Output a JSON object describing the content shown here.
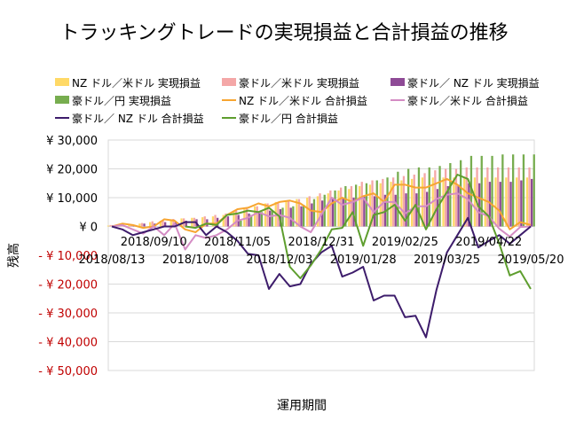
{
  "chart_data": {
    "type": "bar+line",
    "title": "トラッキングトレードの実現損益と合計損益の推移",
    "xlabel": "運用期間",
    "ylabel": "残高",
    "ylim": [
      -50000,
      30000
    ],
    "yticks": [
      30000,
      20000,
      10000,
      0,
      -10000,
      -20000,
      -30000,
      -40000,
      -50000
    ],
    "ytick_labels": [
      "¥ 30,000",
      "¥ 20,000",
      "¥ 10,000",
      "¥ 0",
      "- ¥ 10,000",
      "- ¥ 20,000",
      "- ¥ 30,000",
      "- ¥ 40,000",
      "- ¥ 50,000"
    ],
    "negative_tick_color": "#C00000",
    "grid": true,
    "legend_position": "top",
    "x_start": "2018/08/13",
    "x_interval": "weekly",
    "xtick_labels": [
      "2018/08/13",
      "2018/09/10",
      "2018/10/08",
      "2018/11/05",
      "2018/12/03",
      "2018/12/31",
      "2019/01/28",
      "2019/02/25",
      "2019/03/25",
      "2019/04/22",
      "2019/05/20"
    ],
    "bar_series": [
      {
        "name": "NZ ドル／米ドル 実現損益",
        "color": "#FFD966",
        "values": [
          300,
          600,
          800,
          1000,
          1500,
          2000,
          2500,
          2800,
          3000,
          3200,
          3500,
          4000,
          5500,
          6000,
          7000,
          8000,
          8500,
          9000,
          9500,
          10000,
          10500,
          11500,
          12500,
          13000,
          14000,
          14500,
          15000,
          15500,
          16000,
          16500,
          17000,
          17000,
          17000,
          17000,
          17000,
          17000,
          17000,
          17000,
          17000,
          17000,
          17000
        ]
      },
      {
        "name": "豪ドル／米ドル 実現損益",
        "color": "#F4A7A7",
        "values": [
          500,
          800,
          600,
          1200,
          1800,
          2200,
          2600,
          2800,
          3000,
          3500,
          4000,
          4500,
          5500,
          6500,
          7000,
          8000,
          8500,
          9000,
          9500,
          10500,
          11500,
          12500,
          13500,
          14000,
          15500,
          16000,
          16500,
          17000,
          17500,
          18000,
          18500,
          19500,
          20000,
          20000,
          20500,
          20500,
          20500,
          20500,
          20500,
          20500,
          20500
        ]
      },
      {
        "name": "豪ドル／ NZ ドル 実現損益",
        "color": "#8E4A96",
        "values": [
          0,
          0,
          500,
          1000,
          1000,
          1500,
          1500,
          2000,
          2500,
          2500,
          3000,
          3500,
          4000,
          4500,
          5000,
          5500,
          6000,
          6500,
          7000,
          8000,
          9000,
          9500,
          10000,
          10000,
          10500,
          10500,
          11000,
          11000,
          11500,
          11500,
          12000,
          13000,
          14000,
          14500,
          15000,
          15000,
          15500,
          15500,
          15500,
          16000,
          16500
        ]
      },
      {
        "name": "豪ドル／円 実現損益",
        "color": "#77AD4F",
        "values": [
          0,
          0,
          0,
          0,
          0,
          0,
          0,
          0,
          0,
          0,
          0,
          0,
          2000,
          4000,
          5000,
          5500,
          6500,
          7000,
          7500,
          9500,
          11000,
          12500,
          14000,
          14500,
          15000,
          16000,
          17000,
          19000,
          20000,
          20500,
          20500,
          21000,
          22000,
          23000,
          24500,
          24500,
          24500,
          25000,
          25000,
          25000,
          25000
        ]
      }
    ],
    "line_series": [
      {
        "name": "NZ ドル／米ドル 合計損益",
        "color": "#F7A531",
        "values": [
          0,
          1000,
          500,
          -500,
          0,
          2500,
          2000,
          -1000,
          -2000,
          1000,
          1000,
          4000,
          6000,
          6500,
          8000,
          7000,
          8500,
          9000,
          8000,
          5500,
          5000,
          8000,
          10000,
          8500,
          10500,
          11500,
          8500,
          14500,
          14500,
          13500,
          13500,
          15000,
          16500,
          14500,
          11500,
          10000,
          8500,
          5500,
          -1000,
          1500,
          500
        ]
      },
      {
        "name": "豪ドル／米ドル 合計損益",
        "color": "#D48CC4",
        "values": [
          0,
          500,
          -1000,
          -2500,
          0,
          -3000,
          1000,
          -8000,
          -3000,
          -4000,
          -3000,
          -1000,
          2000,
          3000,
          5000,
          3500,
          4000,
          3000,
          0,
          -2000,
          4000,
          10000,
          7500,
          8500,
          10000,
          5000,
          8500,
          8500,
          4500,
          7000,
          7000,
          9500,
          11000,
          11500,
          9500,
          5000,
          3500,
          -800,
          -3500,
          -200,
          0
        ]
      },
      {
        "name": "豪ドル／ NZ ドル 合計損益",
        "color": "#3D1C6B",
        "values": [
          0,
          -1000,
          -3000,
          -2000,
          -1000,
          0,
          0,
          1500,
          1500,
          -3000,
          0,
          -2000,
          -5000,
          -9500,
          -10000,
          -21700,
          -16500,
          -20800,
          -20000,
          -13000,
          -9000,
          -6700,
          -17400,
          -16000,
          -14000,
          -25700,
          -24000,
          -24000,
          -31500,
          -31000,
          -38500,
          -22000,
          -9000,
          -3000,
          3000,
          -7300,
          -5000,
          -3000,
          -6000,
          -3000,
          0
        ]
      },
      {
        "name": "豪ドル／円 合計損益",
        "color": "#5E9E2E",
        "values": [
          null,
          null,
          null,
          null,
          null,
          null,
          null,
          0,
          -500,
          1000,
          500,
          4000,
          4500,
          5500,
          5000,
          6500,
          3500,
          -14000,
          -18000,
          -13500,
          -8000,
          -1000,
          -500,
          5000,
          -6700,
          4000,
          5000,
          7500,
          2000,
          7500,
          -1000,
          6000,
          12000,
          18000,
          16500,
          7000,
          3500,
          -6000,
          -17000,
          -15500,
          -21700
        ]
      }
    ]
  }
}
